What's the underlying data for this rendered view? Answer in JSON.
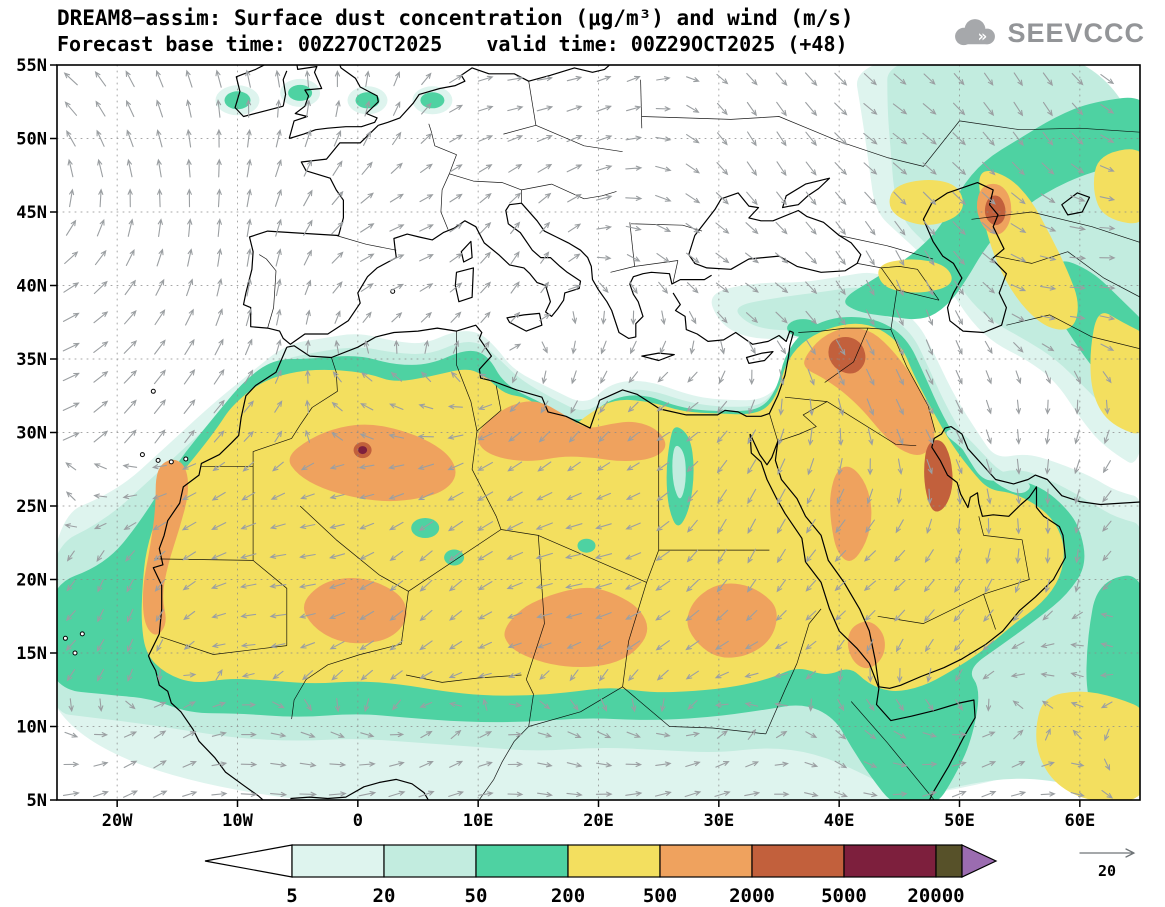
{
  "header": {
    "line1": "DREAM8−assim: Surface dust concentration (μg/m³) and wind (m/s)",
    "line2_left": "Forecast base time: 00Z27OCT2025",
    "line2_right": "valid time: 00Z29OCT2025 (+48)"
  },
  "logo": {
    "text": "SEEVCCC"
  },
  "chart_data": {
    "type": "heatmap",
    "title": "DREAM8−assim: Surface dust concentration (μg/m³) and wind (m/s)",
    "subtitle": "Forecast base time: 00Z27OCT2025  valid time: 00Z29OCT2025 (+48)",
    "x_axis": {
      "tick_labels": [
        "20W",
        "10W",
        "0",
        "10E",
        "20E",
        "30E",
        "40E",
        "50E",
        "60E"
      ],
      "tick_lons": [
        -20,
        -10,
        0,
        10,
        20,
        30,
        40,
        50,
        60
      ],
      "range_lon": [
        -25,
        65
      ]
    },
    "y_axis": {
      "tick_labels": [
        "55N",
        "50N",
        "45N",
        "40N",
        "35N",
        "30N",
        "25N",
        "20N",
        "15N",
        "10N",
        "5N"
      ],
      "tick_lats": [
        55,
        50,
        45,
        40,
        35,
        30,
        25,
        20,
        15,
        10,
        5
      ],
      "range_lat": [
        5,
        55
      ]
    },
    "colorbar": {
      "levels": [
        "5",
        "20",
        "50",
        "200",
        "500",
        "2000",
        "5000",
        "20000"
      ],
      "band_colors": [
        "#ffffff",
        "#def4ee",
        "#c2ecdf",
        "#4ed2a2",
        "#f3df5f",
        "#efa25e",
        "#c2603c",
        "#7d1f3d",
        "#575129",
        "#9b6cb0"
      ]
    },
    "wind": {
      "reference_label": "20",
      "arrow_color": "#9b9fa2"
    },
    "grid": true,
    "legend_position": "bottom"
  }
}
